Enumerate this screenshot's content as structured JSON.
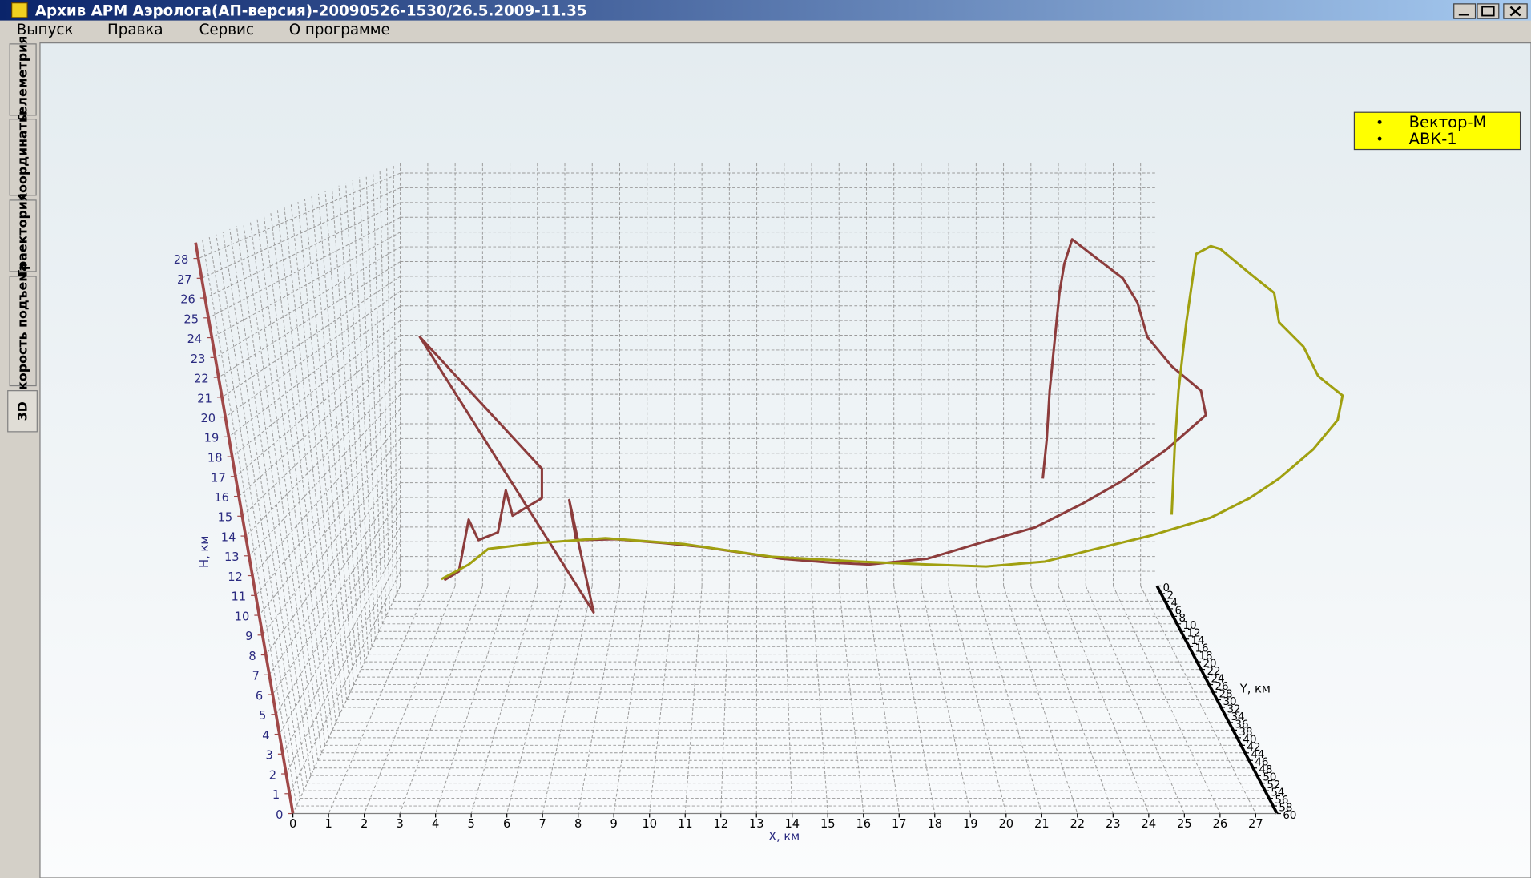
{
  "window": {
    "title": "Архив АРМ Аэролога(АП-версия)-20090526-1530/26.5.2009-11.35"
  },
  "menu": [
    "Выпуск",
    "Правка",
    "Сервис",
    "О программе"
  ],
  "tabs": [
    "Телеметрия",
    "Координаты",
    "Траектория",
    "Скорость подъема",
    "3D"
  ],
  "chart_data": {
    "type": "line3d",
    "xlabel": "Х, км",
    "ylabel": "Y, км",
    "zlabel": "Н, км",
    "xlim": [
      0,
      27.6
    ],
    "xticks": [
      0,
      1,
      2,
      3,
      4,
      5,
      6,
      7,
      8,
      9,
      10,
      11,
      12,
      13,
      14,
      15,
      16,
      17,
      18,
      19,
      20,
      21,
      22,
      23,
      24,
      25,
      26,
      27
    ],
    "ylim": [
      0,
      60
    ],
    "yticks": [
      0,
      2,
      4,
      6,
      8,
      10,
      12,
      14,
      16,
      18,
      20,
      22,
      24,
      26,
      28,
      30,
      32,
      34,
      36,
      38,
      40,
      42,
      44,
      46,
      48,
      50,
      52,
      54,
      56,
      58,
      60
    ],
    "zlim": [
      0,
      28.8
    ],
    "zticks": [
      0,
      1,
      2,
      3,
      4,
      5,
      6,
      7,
      8,
      9,
      10,
      11,
      12,
      13,
      14,
      15,
      16,
      17,
      18,
      19,
      20,
      21,
      22,
      23,
      24,
      25,
      26,
      27,
      28
    ],
    "grid": true,
    "series": [
      {
        "name": "Вектор-М",
        "color": "#8c3c3c"
      },
      {
        "name": "АВК-1",
        "color": "#a0a010"
      }
    ]
  }
}
